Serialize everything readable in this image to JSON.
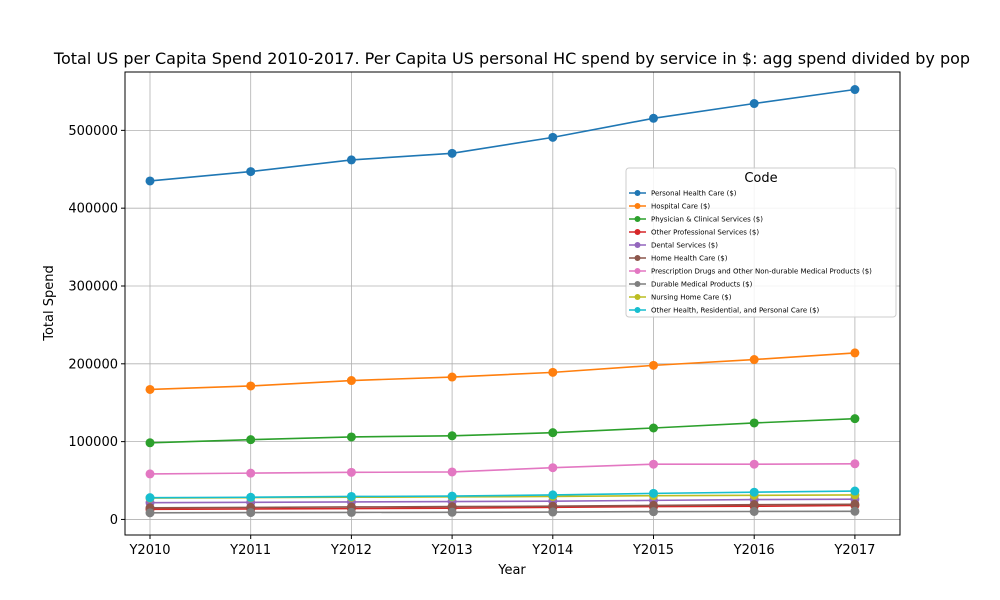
{
  "chart_data": {
    "type": "line",
    "title": "Total US per Capita Spend 2010-2017. Per Capita US personal HC spend by service in $: agg spend divided by pop",
    "xlabel": "Year",
    "ylabel": "Total Spend",
    "categories": [
      "Y2010",
      "Y2011",
      "Y2012",
      "Y2013",
      "Y2014",
      "Y2015",
      "Y2016",
      "Y2017"
    ],
    "ylim": [
      -20000,
      575000
    ],
    "yticks": [
      0,
      100000,
      200000,
      300000,
      400000,
      500000
    ],
    "ytick_labels": [
      "0",
      "100000",
      "200000",
      "300000",
      "400000",
      "500000"
    ],
    "grid": true,
    "legend": {
      "title": "Code",
      "placement": "center-right"
    },
    "series": [
      {
        "name": "Personal Health Care ($)",
        "color": "#1f77b4",
        "values": [
          435000,
          447000,
          462000,
          470500,
          491000,
          515500,
          534500,
          552500
        ]
      },
      {
        "name": "Hospital Care ($)",
        "color": "#ff7f0e",
        "values": [
          167000,
          171500,
          178500,
          183000,
          189000,
          198000,
          205500,
          214000
        ]
      },
      {
        "name": "Physician & Clinical Services ($)",
        "color": "#2ca02c",
        "values": [
          98500,
          102500,
          106000,
          107500,
          111500,
          117500,
          124000,
          129500
        ]
      },
      {
        "name": "Other Professional Services ($)",
        "color": "#d62728",
        "values": [
          13000,
          13500,
          14000,
          14500,
          15500,
          16500,
          17000,
          18000
        ]
      },
      {
        "name": "Dental Services ($)",
        "color": "#9467bd",
        "values": [
          21500,
          22000,
          22500,
          23000,
          23500,
          24500,
          25500,
          26000
        ]
      },
      {
        "name": "Home Health Care ($)",
        "color": "#8c564b",
        "values": [
          15000,
          15500,
          16000,
          16500,
          17000,
          18000,
          19000,
          19500
        ]
      },
      {
        "name": "Prescription Drugs and Other Non-durable Medical Products ($)",
        "color": "#e377c2",
        "values": [
          58500,
          59500,
          60500,
          61000,
          66500,
          71000,
          71000,
          71500
        ]
      },
      {
        "name": "Durable Medical Products ($)",
        "color": "#7f7f7f",
        "values": [
          8500,
          8800,
          9000,
          9200,
          9500,
          10000,
          10200,
          10500
        ]
      },
      {
        "name": "Nursing Home Care ($)",
        "color": "#bcbd22",
        "values": [
          27500,
          28000,
          28500,
          29000,
          29500,
          30500,
          31000,
          31500
        ]
      },
      {
        "name": "Other Health, Residential, and Personal Care ($)",
        "color": "#17becf",
        "values": [
          28000,
          28500,
          29500,
          30000,
          31500,
          33500,
          35000,
          36500
        ]
      }
    ]
  }
}
